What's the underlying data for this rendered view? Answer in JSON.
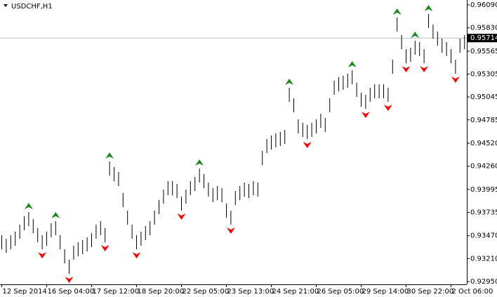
{
  "chart_data": {
    "type": "ohlc",
    "title": "USDCHF,H1",
    "categories": [
      "12 Sep 2014",
      null,
      null,
      null,
      null,
      null,
      null,
      null,
      null,
      null,
      "16 Sep 04:00",
      null,
      null,
      null,
      null,
      null,
      null,
      null,
      null,
      null,
      "17 Sep 12:00",
      null,
      null,
      null,
      null,
      null,
      null,
      null,
      null,
      null,
      "18 Sep 20:00",
      null,
      null,
      null,
      null,
      null,
      null,
      null,
      null,
      null,
      "22 Sep 05:00",
      null,
      null,
      null,
      null,
      null,
      null,
      null,
      null,
      null,
      "23 Sep 13:00",
      null,
      null,
      null,
      null,
      null,
      null,
      null,
      null,
      null,
      "24 Sep 21:00",
      null,
      null,
      null,
      null,
      null,
      null,
      null,
      null,
      null,
      "26 Sep 05:00",
      null,
      null,
      null,
      null,
      null,
      null,
      null,
      null,
      null,
      "29 Sep 14:00",
      null,
      null,
      null,
      null,
      null,
      null,
      null,
      null,
      null,
      "30 Sep 22:00",
      null,
      null,
      null,
      null,
      null,
      null,
      null,
      null,
      null,
      "2 Oct 06:00",
      null,
      null,
      null
    ],
    "high": [
      0.93476,
      0.93436,
      0.93476,
      0.93516,
      0.93596,
      0.93692,
      0.93739,
      0.9366,
      0.93556,
      0.93476,
      0.93516,
      0.93612,
      0.93636,
      0.93476,
      0.93317,
      0.93197,
      0.93357,
      0.93397,
      0.93421,
      0.93452,
      0.935,
      0.93596,
      0.93636,
      0.93556,
      0.94313,
      0.94249,
      0.94194,
      0.93955,
      0.93755,
      0.93596,
      0.93476,
      0.93516,
      0.9358,
      0.93636,
      0.93755,
      0.93875,
      0.93994,
      0.9409,
      0.9409,
      0.94058,
      0.93915,
      0.93994,
      0.9409,
      0.94138,
      0.94233,
      0.9417,
      0.94074,
      0.9401,
      0.94034,
      0.9401,
      0.93835,
      0.93755,
      0.93978,
      0.94034,
      0.94074,
      0.94058,
      0.9409,
      0.94074,
      0.94433,
      0.94568,
      0.94608,
      0.94632,
      0.94648,
      0.94672,
      0.9515,
      0.9503,
      0.94791,
      0.94752,
      0.94728,
      0.94752,
      0.94791,
      0.94855,
      0.94807,
      0.9503,
      0.9523,
      0.9527,
      0.95286,
      0.95309,
      0.95349,
      0.95206,
      0.95094,
      0.9507,
      0.9515,
      0.9519,
      0.9519,
      0.9519,
      0.9515,
      0.95469,
      0.95947,
      0.95748,
      0.95588,
      0.95604,
      0.95684,
      0.95668,
      0.95588,
      0.95987,
      0.95867,
      0.95788,
      0.95708,
      0.95668,
      0.95588,
      0.95469,
      0.95708,
      0.95748
    ],
    "low": [
      0.93316,
      0.93276,
      0.93316,
      0.93356,
      0.93436,
      0.93532,
      0.93579,
      0.935,
      0.93396,
      0.93316,
      0.93356,
      0.93452,
      0.93476,
      0.93316,
      0.93157,
      0.93037,
      0.93197,
      0.93237,
      0.93261,
      0.93292,
      0.9334,
      0.93436,
      0.93476,
      0.93396,
      0.94153,
      0.94089,
      0.94034,
      0.93795,
      0.93595,
      0.93436,
      0.93316,
      0.93356,
      0.9342,
      0.93476,
      0.93595,
      0.93715,
      0.93834,
      0.9393,
      0.9393,
      0.93898,
      0.93755,
      0.93834,
      0.9393,
      0.93978,
      0.94073,
      0.9401,
      0.93914,
      0.9385,
      0.93874,
      0.9385,
      0.93675,
      0.93595,
      0.93818,
      0.93874,
      0.93914,
      0.93898,
      0.9393,
      0.93914,
      0.94273,
      0.94408,
      0.94448,
      0.94472,
      0.94488,
      0.94512,
      0.9499,
      0.9487,
      0.94631,
      0.94592,
      0.94568,
      0.94592,
      0.94631,
      0.94695,
      0.94647,
      0.9487,
      0.9507,
      0.9511,
      0.95126,
      0.95149,
      0.95189,
      0.95046,
      0.94934,
      0.9491,
      0.9499,
      0.9503,
      0.9503,
      0.9503,
      0.9499,
      0.95309,
      0.95787,
      0.95588,
      0.95428,
      0.95444,
      0.95524,
      0.95508,
      0.95428,
      0.95827,
      0.95707,
      0.95628,
      0.95548,
      0.95508,
      0.95428,
      0.95309,
      0.95548,
      0.95588
    ],
    "color": "#000000",
    "fractals": true,
    "fractal_up_color": "#1a8a1a",
    "fractal_down_color": "#ff0000",
    "current_price": 0.95714,
    "ylim": [
      0.92918,
      0.96146
    ],
    "yticks": [
      {
        "value": 0.9609,
        "label": "0.96090"
      },
      {
        "value": 0.9583,
        "label": "0.95830"
      },
      0.95565,
      0.95305,
      0.95045,
      0.94785,
      {
        "value": 0.9452,
        "label": "0.94520"
      },
      {
        "value": 0.9426,
        "label": "0.94260"
      },
      0.93995,
      0.93735,
      {
        "value": 0.9347,
        "label": "0.93470"
      },
      {
        "value": 0.9321,
        "label": "0.93210"
      },
      {
        "value": 0.9295,
        "label": "0.92950"
      }
    ]
  }
}
